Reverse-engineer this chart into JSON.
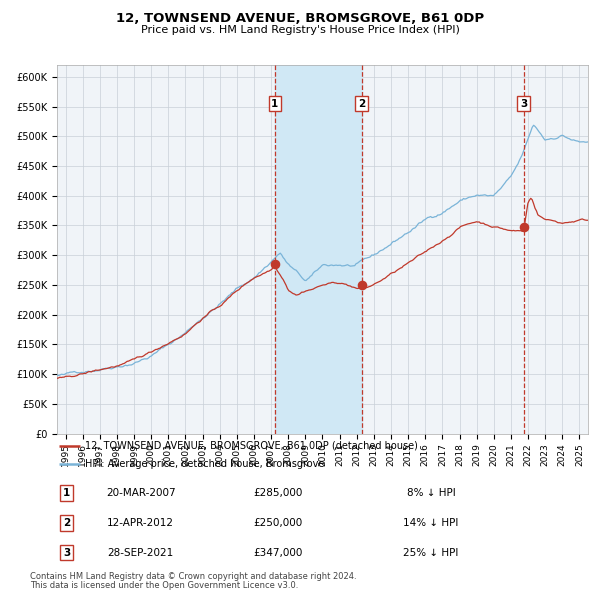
{
  "title": "12, TOWNSEND AVENUE, BROMSGROVE, B61 0DP",
  "subtitle": "Price paid vs. HM Land Registry's House Price Index (HPI)",
  "legend_line1": "12, TOWNSEND AVENUE, BROMSGROVE, B61 0DP (detached house)",
  "legend_line2": "HPI: Average price, detached house, Bromsgrove",
  "footnote1": "Contains HM Land Registry data © Crown copyright and database right 2024.",
  "footnote2": "This data is licensed under the Open Government Licence v3.0.",
  "transactions": [
    {
      "num": 1,
      "date": "20-MAR-2007",
      "price": 285000,
      "pct": "8%",
      "dir": "↓",
      "year": 2007.22
    },
    {
      "num": 2,
      "date": "12-APR-2012",
      "price": 250000,
      "pct": "14%",
      "dir": "↓",
      "year": 2012.28
    },
    {
      "num": 3,
      "date": "28-SEP-2021",
      "price": 347000,
      "pct": "25%",
      "dir": "↓",
      "year": 2021.74
    }
  ],
  "hpi_color": "#7ab4d8",
  "price_color": "#c0392b",
  "bg_color": "#ffffff",
  "plot_bg_color": "#f0f4f8",
  "shade_color": "#d0e8f5",
  "grid_color": "#c8d0d8",
  "ylim": [
    0,
    620000
  ],
  "yticks": [
    0,
    50000,
    100000,
    150000,
    200000,
    250000,
    300000,
    350000,
    400000,
    450000,
    500000,
    550000,
    600000
  ],
  "xlim_start": 1994.5,
  "xlim_end": 2025.5
}
